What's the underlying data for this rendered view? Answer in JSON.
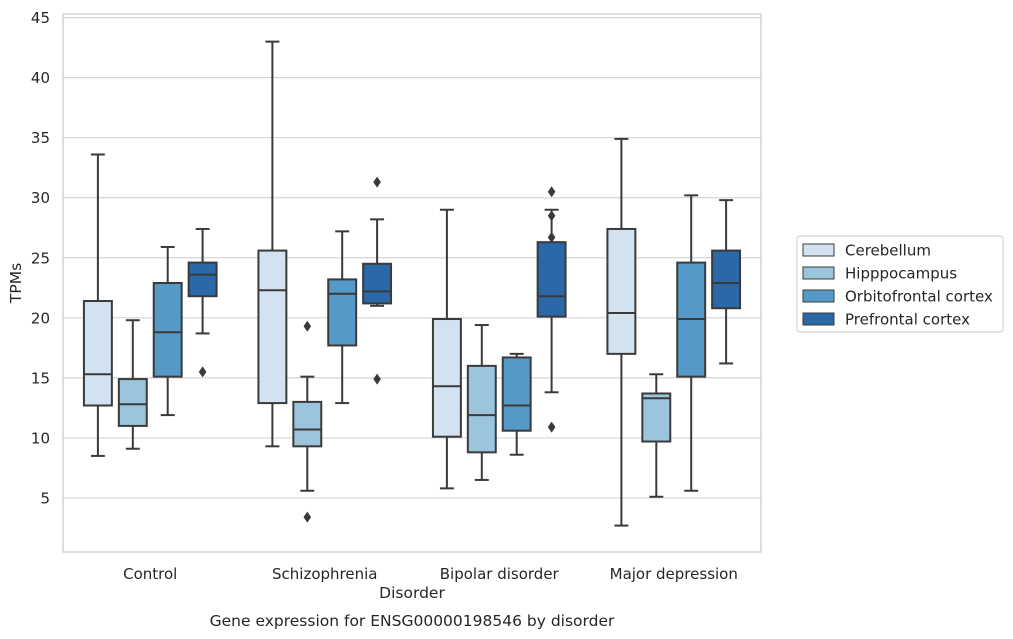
{
  "chart_data": {
    "type": "box",
    "xlabel": "Disorder",
    "ylabel": "TPMs",
    "caption": "Gene expression for ENSG00000198546 by disorder",
    "ylim": [
      0.5,
      45.3
    ],
    "yticks": [
      5,
      10,
      15,
      20,
      25,
      30,
      35,
      40,
      45
    ],
    "grid": "horizontal",
    "legend_position": "right",
    "categories": [
      "Control",
      "Schizophrenia",
      "Bipolar disorder",
      "Major depression"
    ],
    "series": [
      {
        "name": "Cerebellum",
        "color": "#d3e2f1",
        "boxes": [
          {
            "whisker_low": 8.5,
            "q1": 12.7,
            "median": 15.3,
            "q3": 21.4,
            "whisker_high": 33.6,
            "outliers": []
          },
          {
            "whisker_low": 9.3,
            "q1": 12.9,
            "median": 22.3,
            "q3": 25.6,
            "whisker_high": 43.0,
            "outliers": []
          },
          {
            "whisker_low": 5.8,
            "q1": 10.1,
            "median": 14.3,
            "q3": 19.9,
            "whisker_high": 29.0,
            "outliers": []
          },
          {
            "whisker_low": 2.7,
            "q1": 17.0,
            "median": 20.4,
            "q3": 27.4,
            "whisker_high": 34.9,
            "outliers": []
          }
        ]
      },
      {
        "name": "Hipppocampus",
        "color": "#9ac5dc",
        "boxes": [
          {
            "whisker_low": 9.1,
            "q1": 11.0,
            "median": 12.8,
            "q3": 14.9,
            "whisker_high": 19.8,
            "outliers": []
          },
          {
            "whisker_low": 5.6,
            "q1": 9.3,
            "median": 10.7,
            "q3": 13.0,
            "whisker_high": 15.1,
            "outliers": [
              19.3,
              3.4
            ]
          },
          {
            "whisker_low": 6.5,
            "q1": 8.8,
            "median": 11.9,
            "q3": 16.0,
            "whisker_high": 19.4,
            "outliers": []
          },
          {
            "whisker_low": 5.1,
            "q1": 9.7,
            "median": 13.3,
            "q3": 13.7,
            "whisker_high": 15.3,
            "outliers": []
          }
        ]
      },
      {
        "name": "Orbitofrontal cortex",
        "color": "#5499c7",
        "boxes": [
          {
            "whisker_low": 11.9,
            "q1": 15.1,
            "median": 18.8,
            "q3": 22.9,
            "whisker_high": 25.9,
            "outliers": []
          },
          {
            "whisker_low": 12.9,
            "q1": 17.7,
            "median": 22.0,
            "q3": 23.2,
            "whisker_high": 27.2,
            "outliers": []
          },
          {
            "whisker_low": 8.6,
            "q1": 10.6,
            "median": 12.7,
            "q3": 16.7,
            "whisker_high": 17.0,
            "outliers": []
          },
          {
            "whisker_low": 5.6,
            "q1": 15.1,
            "median": 19.9,
            "q3": 24.6,
            "whisker_high": 30.2,
            "outliers": []
          }
        ]
      },
      {
        "name": "Prefrontal cortex",
        "color": "#2a68a8",
        "boxes": [
          {
            "whisker_low": 18.7,
            "q1": 21.8,
            "median": 23.6,
            "q3": 24.6,
            "whisker_high": 27.4,
            "outliers": [
              15.5
            ]
          },
          {
            "whisker_low": 21.0,
            "q1": 21.2,
            "median": 22.2,
            "q3": 24.5,
            "whisker_high": 28.2,
            "outliers": [
              31.3,
              14.9
            ]
          },
          {
            "whisker_low": 13.8,
            "q1": 20.1,
            "median": 21.8,
            "q3": 26.3,
            "whisker_high": 29.0,
            "outliers": [
              30.5,
              28.5,
              26.7,
              10.9
            ]
          },
          {
            "whisker_low": 16.2,
            "q1": 20.8,
            "median": 22.9,
            "q3": 25.6,
            "whisker_high": 29.8,
            "outliers": []
          }
        ]
      }
    ]
  }
}
